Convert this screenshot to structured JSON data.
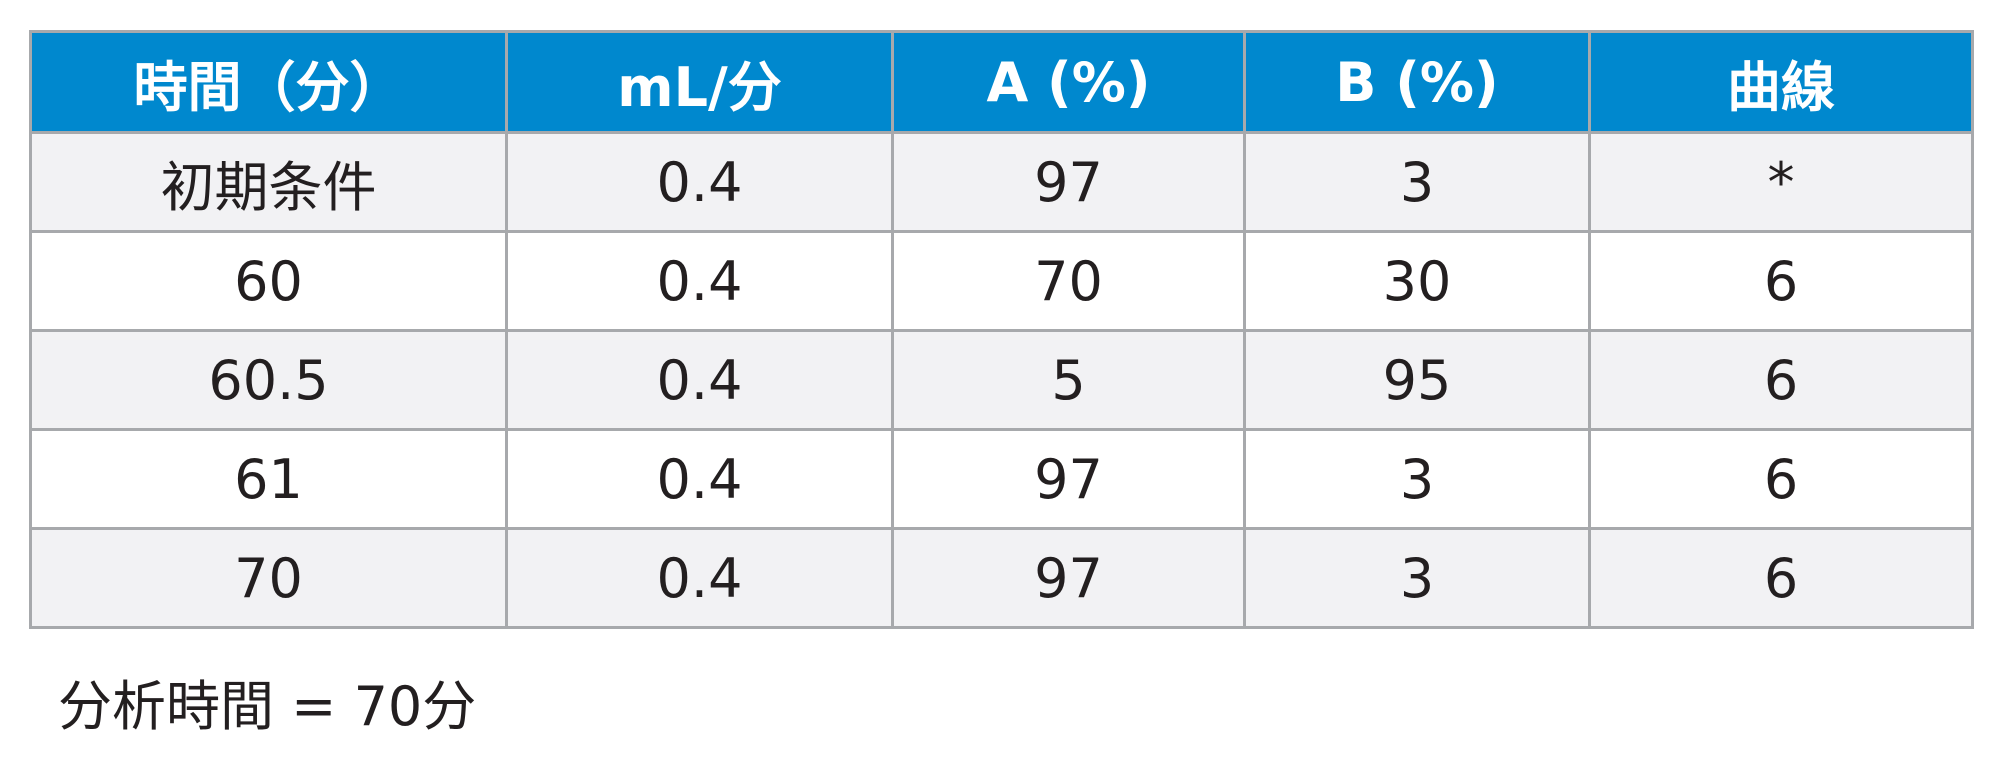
{
  "table": {
    "headers": [
      "時間（分）",
      "mL/分",
      "A (%)",
      "B (%)",
      "曲線"
    ],
    "rows": [
      [
        "初期条件",
        "0.4",
        "97",
        "3",
        "*"
      ],
      [
        "60",
        "0.4",
        "70",
        "30",
        "6"
      ],
      [
        "60.5",
        "0.4",
        "5",
        "95",
        "6"
      ],
      [
        "61",
        "0.4",
        "97",
        "3",
        "6"
      ],
      [
        "70",
        "0.4",
        "97",
        "3",
        "6"
      ]
    ]
  },
  "footnote": "分析時間 = 70分",
  "colors": {
    "header_background": "#0088ce",
    "header_text": "#ffffff",
    "row_shaded": "#f2f2f4",
    "row_plain": "#ffffff",
    "grid_line": "#a7a9ac"
  }
}
